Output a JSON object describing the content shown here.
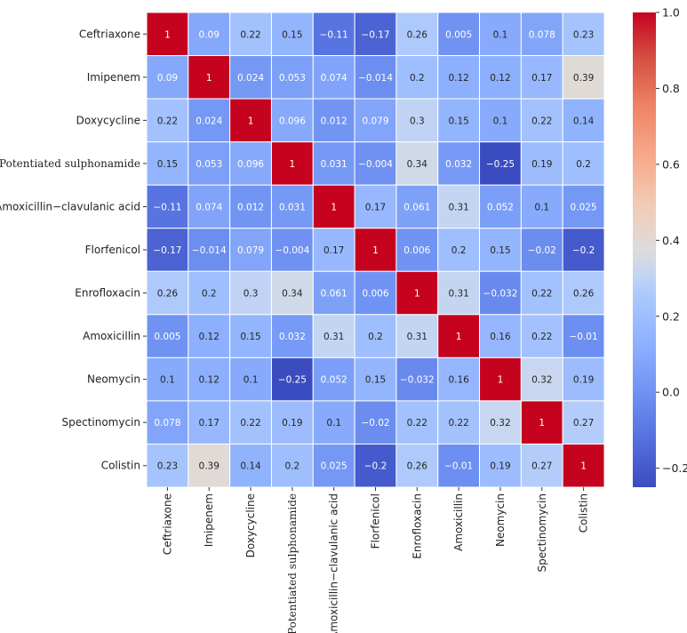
{
  "chart_data": {
    "type": "heatmap",
    "title": "",
    "xlabel": "",
    "ylabel": "",
    "colormap": "coolwarm",
    "vmin": -0.25,
    "vmax": 1.0,
    "labels": [
      "Ceftriaxone",
      "Imipenem",
      "Doxycycline",
      "Potentiated sulphonamide",
      "Amoxicillin−clavulanic acid",
      "Florfenicol",
      "Enrofloxacin",
      "Amoxicillin",
      "Neomycin",
      "Spectinomycin",
      "Colistin"
    ],
    "values": [
      [
        "1",
        "0.09",
        "0.22",
        "0.15",
        "−0.11",
        "−0.17",
        "0.26",
        "0.005",
        "0.1",
        "0.078",
        "0.23"
      ],
      [
        "0.09",
        "1",
        "0.024",
        "0.053",
        "0.074",
        "−0.014",
        "0.2",
        "0.12",
        "0.12",
        "0.17",
        "0.39"
      ],
      [
        "0.22",
        "0.024",
        "1",
        "0.096",
        "0.012",
        "0.079",
        "0.3",
        "0.15",
        "0.1",
        "0.22",
        "0.14"
      ],
      [
        "0.15",
        "0.053",
        "0.096",
        "1",
        "0.031",
        "−0.004",
        "0.34",
        "0.032",
        "−0.25",
        "0.19",
        "0.2"
      ],
      [
        "−0.11",
        "0.074",
        "0.012",
        "0.031",
        "1",
        "0.17",
        "0.061",
        "0.31",
        "0.052",
        "0.1",
        "0.025"
      ],
      [
        "−0.17",
        "−0.014",
        "0.079",
        "−0.004",
        "0.17",
        "1",
        "0.006",
        "0.2",
        "0.15",
        "−0.02",
        "−0.2"
      ],
      [
        "0.26",
        "0.2",
        "0.3",
        "0.34",
        "0.061",
        "0.006",
        "1",
        "0.31",
        "−0.032",
        "0.22",
        "0.26"
      ],
      [
        "0.005",
        "0.12",
        "0.15",
        "0.032",
        "0.31",
        "0.2",
        "0.31",
        "1",
        "0.16",
        "0.22",
        "−0.01"
      ],
      [
        "0.1",
        "0.12",
        "0.1",
        "−0.25",
        "0.052",
        "0.15",
        "−0.032",
        "0.16",
        "1",
        "0.32",
        "0.19"
      ],
      [
        "0.078",
        "0.17",
        "0.22",
        "0.19",
        "0.1",
        "−0.02",
        "0.22",
        "0.22",
        "0.32",
        "1",
        "0.27"
      ],
      [
        "0.23",
        "0.39",
        "0.14",
        "0.2",
        "0.025",
        "−0.2",
        "0.26",
        "−0.01",
        "0.19",
        "0.27",
        "1"
      ]
    ],
    "colorbar": {
      "ticks": [
        1.0,
        0.8,
        0.6,
        0.4,
        0.2,
        0.0,
        -0.2
      ],
      "tick_labels": [
        "1.0",
        "0.8",
        "0.6",
        "0.4",
        "0.2",
        "0.0",
        "−0.2"
      ]
    },
    "grid": false,
    "legend": "colorbar-right"
  }
}
